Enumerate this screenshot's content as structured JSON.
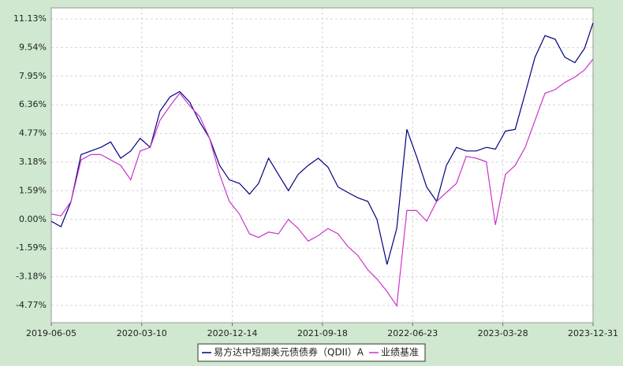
{
  "chart_data": {
    "type": "line",
    "x": [
      "2019-06-05",
      "2019-07-05",
      "2019-08-05",
      "2019-09-05",
      "2019-10-05",
      "2019-11-05",
      "2019-12-05",
      "2020-01-05",
      "2020-02-05",
      "2020-03-05",
      "2020-04-05",
      "2020-05-05",
      "2020-06-05",
      "2020-07-05",
      "2020-08-05",
      "2020-09-05",
      "2020-10-05",
      "2020-11-05",
      "2020-12-05",
      "2021-01-05",
      "2021-02-05",
      "2021-03-05",
      "2021-04-05",
      "2021-05-05",
      "2021-06-05",
      "2021-07-05",
      "2021-08-05",
      "2021-09-05",
      "2021-10-05",
      "2021-11-05",
      "2021-12-05",
      "2022-01-05",
      "2022-02-05",
      "2022-03-05",
      "2022-04-05",
      "2022-05-05",
      "2022-06-05",
      "2022-07-05",
      "2022-08-05",
      "2022-09-05",
      "2022-10-05",
      "2022-11-05",
      "2022-12-05",
      "2023-01-05",
      "2023-02-05",
      "2023-03-05",
      "2023-04-05",
      "2023-05-05",
      "2023-06-05",
      "2023-07-05",
      "2023-08-05",
      "2023-09-05",
      "2023-10-05",
      "2023-11-05",
      "2023-12-05",
      "2023-12-31"
    ],
    "series": [
      {
        "name": "易方达中短期美元债债券（QDII）A",
        "color": "#000080",
        "values": [
          -0.1,
          -0.4,
          1.0,
          3.6,
          3.8,
          4.0,
          4.3,
          3.4,
          3.8,
          4.5,
          4.0,
          6.0,
          6.8,
          7.1,
          6.5,
          5.4,
          4.5,
          3.0,
          2.2,
          2.0,
          1.4,
          2.0,
          3.4,
          2.5,
          1.6,
          2.5,
          3.0,
          3.4,
          2.9,
          1.8,
          1.5,
          1.2,
          1.0,
          0.0,
          -2.5,
          -0.5,
          5.0,
          3.5,
          1.8,
          1.0,
          3.0,
          4.0,
          3.8,
          3.8,
          4.0,
          3.9,
          4.9,
          5.0,
          7.0,
          9.0,
          10.2,
          10.0,
          9.0,
          8.7,
          9.5,
          10.9
        ]
      },
      {
        "name": "业绩基准",
        "color": "#cc33cc",
        "values": [
          0.3,
          0.2,
          1.0,
          3.3,
          3.6,
          3.6,
          3.3,
          3.0,
          2.2,
          3.8,
          4.0,
          5.5,
          6.3,
          7.0,
          6.3,
          5.7,
          4.5,
          2.5,
          1.0,
          0.3,
          -0.8,
          -1.0,
          -0.7,
          -0.8,
          0.0,
          -0.5,
          -1.2,
          -0.9,
          -0.5,
          -0.8,
          -1.5,
          -2.0,
          -2.8,
          -3.3,
          -4.0,
          -4.8,
          0.5,
          0.5,
          -0.1,
          1.0,
          1.5,
          2.0,
          3.5,
          3.4,
          3.2,
          -0.3,
          2.5,
          3.0,
          4.0,
          5.5,
          7.0,
          7.2,
          7.6,
          7.9,
          8.3,
          8.9
        ]
      }
    ],
    "xlim": [
      "2019-06-05",
      "2023-12-31"
    ],
    "xticks": [
      "2019-06-05",
      "2020-03-10",
      "2020-12-14",
      "2021-09-18",
      "2022-06-23",
      "2023-03-28",
      "2023-12-31"
    ],
    "ylim": [
      -5.73,
      11.74
    ],
    "yticks": [
      {
        "value": 11.13,
        "label": "11.13%"
      },
      {
        "value": 9.54,
        "label": "9.54%"
      },
      {
        "value": 7.95,
        "label": "7.95%"
      },
      {
        "value": 6.36,
        "label": "6.36%"
      },
      {
        "value": 4.77,
        "label": "4.77%"
      },
      {
        "value": 3.18,
        "label": "3.18%"
      },
      {
        "value": 1.59,
        "label": "1.59%"
      },
      {
        "value": 0.0,
        "label": "0.00%"
      },
      {
        "value": -1.59,
        "label": "-1.59%"
      },
      {
        "value": -3.18,
        "label": "-3.18%"
      },
      {
        "value": -4.77,
        "label": "-4.77%"
      }
    ],
    "grid": true,
    "legend": "bottom"
  }
}
